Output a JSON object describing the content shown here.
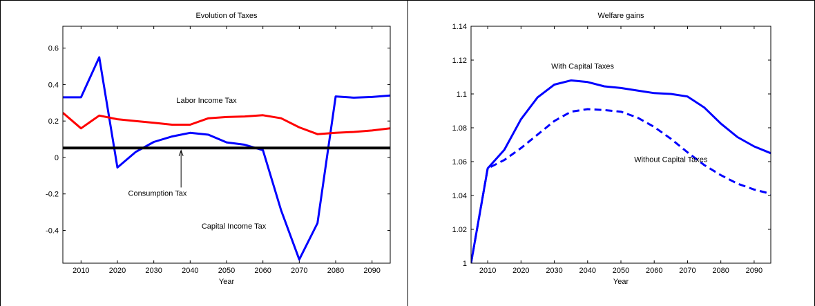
{
  "colors": {
    "blue": "#0000ff",
    "red": "#ff0000",
    "black": "#000000"
  },
  "chart_data": [
    {
      "type": "line",
      "title": "Evolution of Taxes",
      "xlabel": "Year",
      "ylabel": "",
      "xlim": [
        2005,
        2095
      ],
      "ylim": [
        -0.58,
        0.72
      ],
      "xticks": [
        2010,
        2020,
        2030,
        2040,
        2050,
        2060,
        2070,
        2080,
        2090
      ],
      "yticks": [
        -0.4,
        -0.2,
        0,
        0.2,
        0.4,
        0.6
      ],
      "ytick_labels": [
        "-0.4",
        "-0.2",
        "0",
        "0.2",
        "0.4",
        "0.6"
      ],
      "series": [
        {
          "name": "Capital Income Tax",
          "color": "#0000ff",
          "style": "solid",
          "x": [
            2005,
            2010,
            2015,
            2020,
            2025,
            2030,
            2035,
            2040,
            2045,
            2050,
            2055,
            2060,
            2065,
            2070,
            2075,
            2080,
            2085,
            2090,
            2095
          ],
          "y": [
            0.33,
            0.33,
            0.55,
            -0.055,
            0.03,
            0.085,
            0.115,
            0.135,
            0.125,
            0.083,
            0.07,
            0.04,
            -0.29,
            -0.56,
            -0.36,
            0.335,
            0.328,
            0.332,
            0.34
          ]
        },
        {
          "name": "Labor Income Tax",
          "color": "#ff0000",
          "style": "solid",
          "x": [
            2005,
            2010,
            2015,
            2020,
            2025,
            2030,
            2035,
            2040,
            2045,
            2050,
            2055,
            2060,
            2065,
            2070,
            2075,
            2080,
            2085,
            2090,
            2095
          ],
          "y": [
            0.245,
            0.16,
            0.23,
            0.21,
            0.2,
            0.19,
            0.18,
            0.18,
            0.215,
            0.222,
            0.225,
            0.232,
            0.215,
            0.165,
            0.128,
            0.135,
            0.14,
            0.148,
            0.16
          ]
        },
        {
          "name": "Consumption Tax",
          "color": "#000000",
          "style": "solid",
          "x": [
            2005,
            2095
          ],
          "y": [
            0.052,
            0.052
          ]
        }
      ],
      "annotations": [
        {
          "text": "Labor Income Tax",
          "x": 2044.5,
          "y": 0.315
        },
        {
          "text": "Consumption Tax",
          "x": 2031,
          "y": -0.195
        },
        {
          "text": "Capital Income Tax",
          "x": 2052,
          "y": -0.375
        }
      ],
      "arrow": {
        "from": [
          2037.5,
          -0.195
        ],
        "to": [
          2037.5,
          0.05
        ]
      }
    },
    {
      "type": "line",
      "title": "Welfare gains",
      "xlabel": "Year",
      "ylabel": "",
      "xlim": [
        2005,
        2095
      ],
      "ylim": [
        1.0,
        1.14
      ],
      "xticks": [
        2010,
        2020,
        2030,
        2040,
        2050,
        2060,
        2070,
        2080,
        2090
      ],
      "yticks": [
        1.0,
        1.02,
        1.04,
        1.06,
        1.08,
        1.1,
        1.12,
        1.14
      ],
      "ytick_labels": [
        "1",
        "1.02",
        "1.04",
        "1.06",
        "1.08",
        "1.1",
        "1.12",
        "1.14"
      ],
      "series": [
        {
          "name": "With Capital Taxes",
          "color": "#0000ff",
          "style": "solid",
          "x": [
            2005,
            2010,
            2015,
            2020,
            2025,
            2030,
            2035,
            2040,
            2045,
            2050,
            2055,
            2060,
            2065,
            2070,
            2075,
            2080,
            2085,
            2090,
            2095
          ],
          "y": [
            1.0,
            1.056,
            1.067,
            1.085,
            1.098,
            1.1055,
            1.108,
            1.107,
            1.1045,
            1.1035,
            1.102,
            1.1005,
            1.1,
            1.0985,
            1.092,
            1.0825,
            1.0745,
            1.069,
            1.065
          ]
        },
        {
          "name": "Without Capital Taxes",
          "color": "#0000ff",
          "style": "dashed",
          "x": [
            2005,
            2010,
            2015,
            2020,
            2025,
            2030,
            2035,
            2040,
            2045,
            2050,
            2055,
            2060,
            2065,
            2070,
            2075,
            2080,
            2085,
            2090,
            2095
          ],
          "y": [
            1.0,
            1.056,
            1.061,
            1.068,
            1.076,
            1.084,
            1.0895,
            1.091,
            1.0905,
            1.0895,
            1.086,
            1.0805,
            1.0735,
            1.0655,
            1.058,
            1.052,
            1.047,
            1.0435,
            1.041
          ]
        }
      ],
      "annotations": [
        {
          "text": "With Capital Taxes",
          "x": 2038.5,
          "y": 1.1165
        },
        {
          "text": "Without Capital Taxes",
          "x": 2065,
          "y": 1.0615
        }
      ]
    }
  ]
}
